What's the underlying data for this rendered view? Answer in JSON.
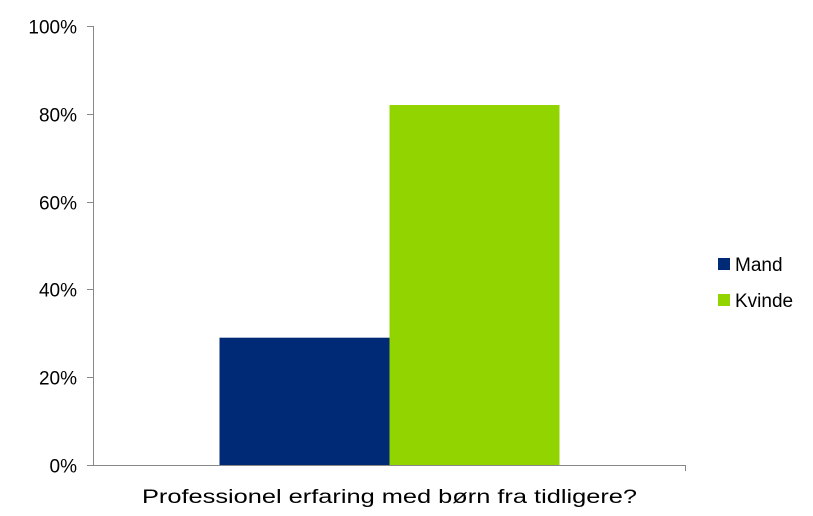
{
  "chart_data": {
    "type": "bar",
    "categories": [
      "Professionel erfaring med børn fra tidligere?"
    ],
    "series": [
      {
        "name": "Mand",
        "values": [
          29
        ],
        "color": "#002a75"
      },
      {
        "name": "Kvinde",
        "values": [
          82
        ],
        "color": "#92d400"
      }
    ],
    "title": "",
    "xlabel": "",
    "ylabel": "",
    "ylim": [
      0,
      100
    ],
    "y_ticks": [
      "0%",
      "20%",
      "40%",
      "60%",
      "80%",
      "100%"
    ],
    "y_tick_values": [
      0,
      20,
      40,
      60,
      80,
      100
    ],
    "grid": false,
    "legend_position": "right"
  }
}
